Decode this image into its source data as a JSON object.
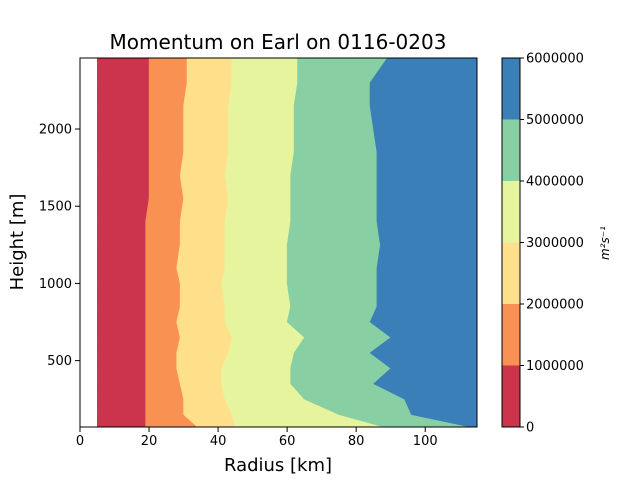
{
  "chart_data": {
    "type": "contourf",
    "title": "Momentum on Earl on 0116-0203",
    "xlabel": "Radius [km]",
    "ylabel": "Height [m]",
    "xlim": [
      0,
      115
    ],
    "ylim": [
      70,
      2460
    ],
    "x_ticks": [
      "0",
      "20",
      "40",
      "60",
      "80",
      "100"
    ],
    "y_ticks": [
      "500",
      "1000",
      "1500",
      "2000"
    ],
    "grid": false,
    "colorbar": {
      "label": "m²s⁻¹",
      "levels": [
        0,
        1000000,
        2000000,
        3000000,
        4000000,
        5000000,
        6000000
      ],
      "tick_labels": [
        "0",
        "1000000",
        "2000000",
        "3000000",
        "4000000",
        "5000000",
        "6000000"
      ],
      "colors": [
        "#cc334d",
        "#f99153",
        "#fee08b",
        "#e6f59d",
        "#88d0a4",
        "#3b7fb8"
      ]
    },
    "no_data_radius_below": 5,
    "heights": [
      70,
      150,
      250,
      350,
      450,
      550,
      650,
      750,
      850,
      1000,
      1100,
      1250,
      1400,
      1550,
      1700,
      1850,
      2000,
      2150,
      2300,
      2460
    ],
    "contour_radii": {
      "1000000": [
        19,
        19,
        19,
        19,
        19,
        19,
        19,
        19,
        19,
        19,
        19,
        19,
        19,
        20,
        20,
        20,
        20,
        20,
        20,
        20
      ],
      "2000000": [
        34,
        30,
        30,
        29,
        28,
        28,
        29,
        28,
        29,
        29,
        28,
        29,
        29,
        30,
        29,
        30,
        30,
        30,
        31,
        31
      ],
      "3000000": [
        45,
        44,
        42,
        41,
        41,
        43,
        44,
        42,
        42,
        41,
        42,
        42,
        42,
        43,
        42,
        43,
        43,
        43,
        44,
        44
      ],
      "4000000": [
        88,
        75,
        65,
        61,
        61,
        62,
        65,
        60,
        61,
        60,
        60,
        60,
        61,
        61,
        61,
        62,
        62,
        62,
        63,
        63
      ],
      "5000000": [
        113,
        96,
        94,
        85,
        90,
        84,
        90,
        84,
        86,
        86,
        86,
        87,
        86,
        86,
        86,
        86,
        85,
        84,
        84,
        89
      ]
    }
  }
}
